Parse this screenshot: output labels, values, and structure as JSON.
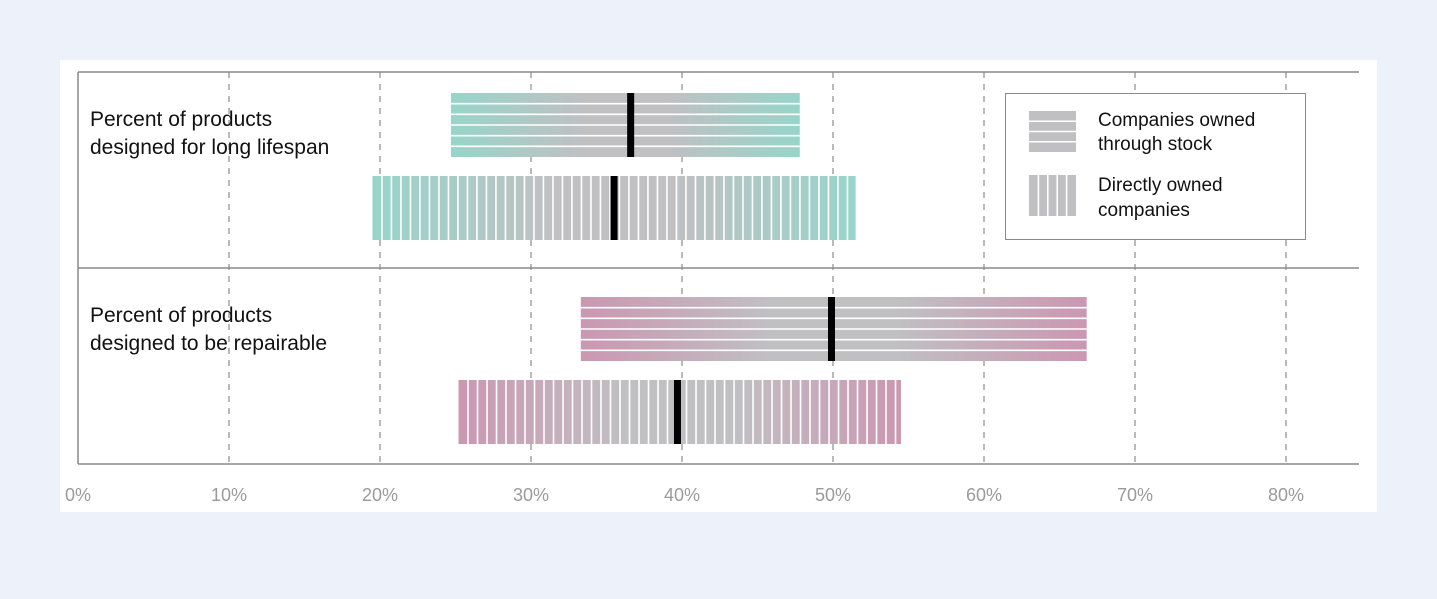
{
  "chart_data": {
    "type": "bar",
    "title": "",
    "xlabel": "",
    "ylabel": "",
    "xlim": [
      0,
      85
    ],
    "x_ticks": [
      0,
      10,
      20,
      30,
      40,
      50,
      60,
      70,
      80
    ],
    "x_tick_labels": [
      "0%",
      "10%",
      "20%",
      "30%",
      "40%",
      "50%",
      "60%",
      "70%",
      "80%"
    ],
    "grid": "vertical dashed",
    "legend_position": "top-right",
    "categories": [
      "Percent of products designed for long lifespan",
      "Percent of products designed to be repairable"
    ],
    "category_label_lines": [
      [
        "Percent of products",
        "designed for long lifespan"
      ],
      [
        "Percent of products",
        "designed to be repairable"
      ]
    ],
    "category_colors": [
      "#97d5c9",
      "#cb97b1"
    ],
    "neutral_color": "#c0c0c3",
    "series": [
      {
        "name": "Companies owned through stock",
        "legend_lines": [
          "Companies owned",
          "through stock"
        ],
        "pattern": "horizontal",
        "ranges": [
          [
            24.7,
            47.8
          ],
          [
            33.3,
            66.8
          ]
        ],
        "markers": [
          36.6,
          49.9
        ]
      },
      {
        "name": "Directly owned companies",
        "legend_lines": [
          "Directly owned",
          "companies"
        ],
        "pattern": "vertical",
        "ranges": [
          [
            19.5,
            51.5
          ],
          [
            25.2,
            54.5
          ]
        ],
        "markers": [
          35.5,
          39.7
        ]
      }
    ]
  }
}
